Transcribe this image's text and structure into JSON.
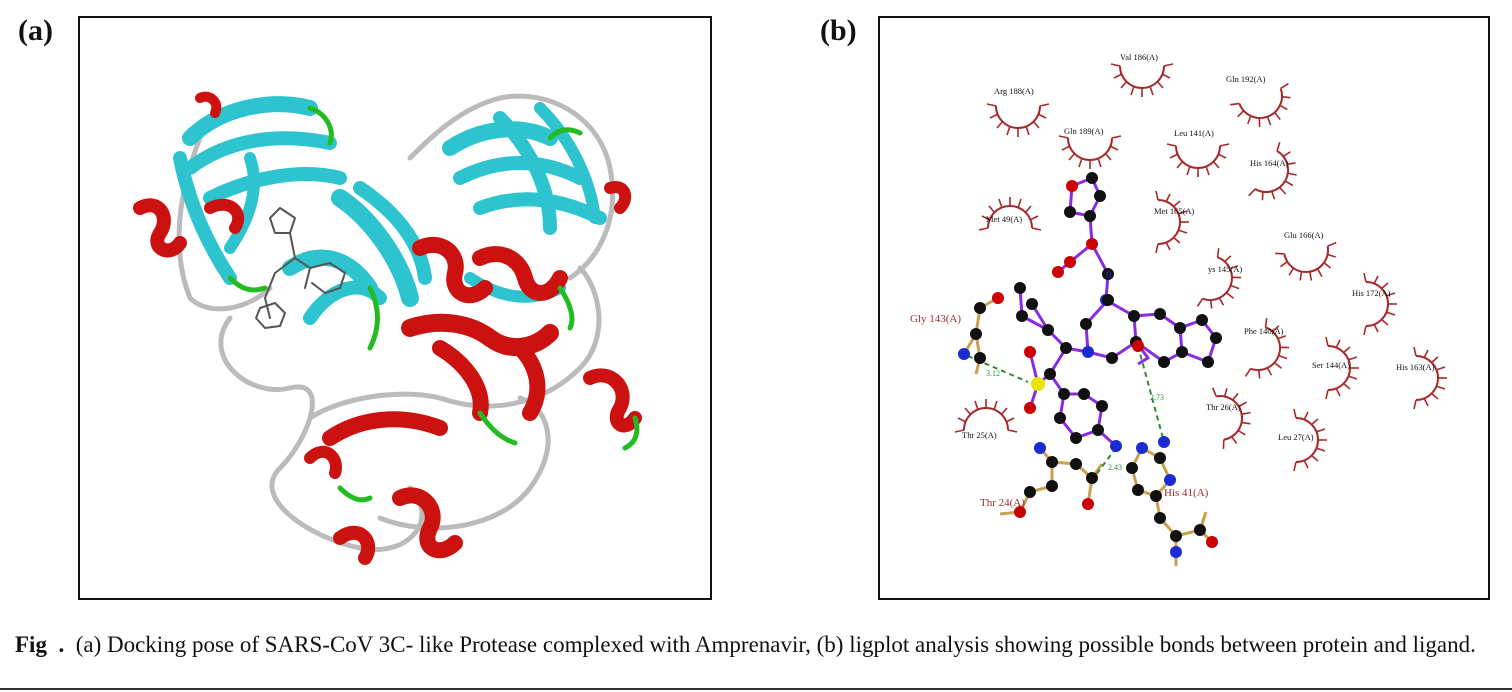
{
  "panel_a": {
    "label": "(a)"
  },
  "panel_b": {
    "label": "(b)"
  },
  "ligplot": {
    "residues": [
      {
        "name": "Val 186(A)"
      },
      {
        "name": "Arg 188(A)"
      },
      {
        "name": "Gln 192(A)"
      },
      {
        "name": "Gln 189(A)"
      },
      {
        "name": "Leu 141(A)"
      },
      {
        "name": "His 164(A)"
      },
      {
        "name": "Met 49(A)"
      },
      {
        "name": "Met 165(A)"
      },
      {
        "name": "Glu 166(A)"
      },
      {
        "name": "ys 145(A)"
      },
      {
        "name": "His 172(A)"
      },
      {
        "name": "Phe 140(A)"
      },
      {
        "name": "Ser 144(A)"
      },
      {
        "name": "His 163(A)"
      },
      {
        "name": "Thr 26(A)"
      },
      {
        "name": "Leu 27(A)"
      },
      {
        "name": "Thr 25(A)"
      }
    ],
    "bonded_residues": [
      {
        "name": "Gly 143(A)"
      },
      {
        "name": "Thr 24(A)"
      },
      {
        "name": "His 41(A)"
      }
    ],
    "hbonds": [
      "3.12",
      "2.73",
      "2.43"
    ],
    "ligand_center_label": "0"
  },
  "caption": {
    "prefix": "Fig",
    "sep": ".",
    "text": "(a) Docking pose of SARS-CoV 3C- like Protease complexed with Amprenavir, (b) ligplot analysis showing possible bonds between protein and ligand."
  }
}
